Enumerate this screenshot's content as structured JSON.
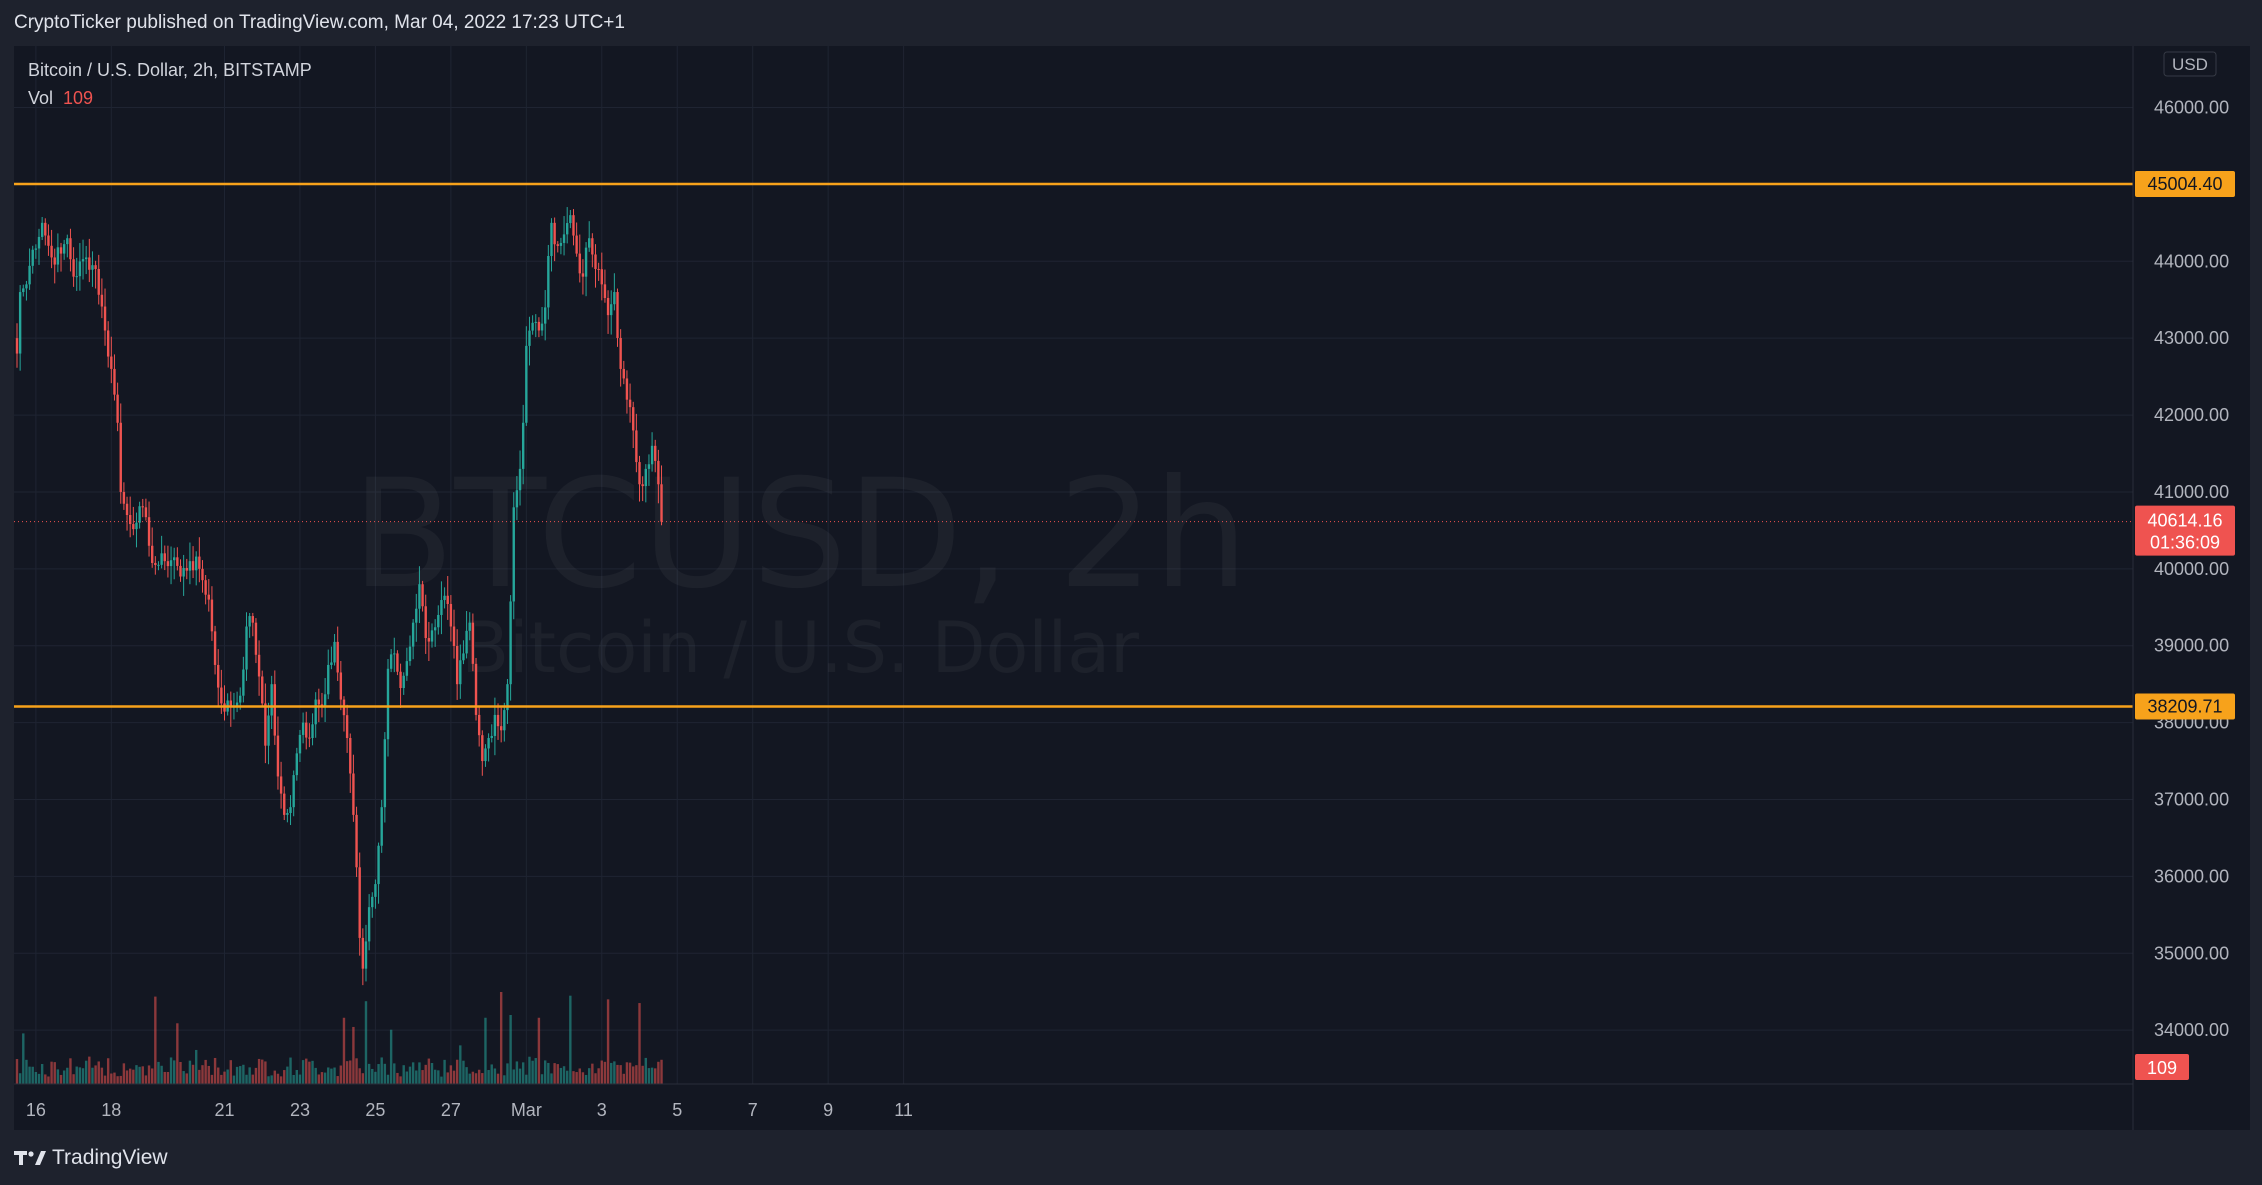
{
  "header": {
    "published_text": "CryptoTicker published on TradingView.com, Mar 04, 2022 17:23 UTC+1"
  },
  "legend": {
    "symbol_line": "Bitcoin / U.S. Dollar, 2h, BITSTAMP",
    "vol_label": "Vol",
    "vol_value": "109"
  },
  "watermark": {
    "ticker": "BTCUSD, 2h",
    "name": "Bitcoin / U.S. Dollar"
  },
  "footer": {
    "brand": "TradingView"
  },
  "colors": {
    "background": "#131722",
    "up": "#26a69a",
    "down": "#ef5350",
    "level_line": "#f7a21b",
    "text": "#b2b5be",
    "grid": "#1f2432"
  },
  "chart_data": {
    "type": "candlestick",
    "symbol": "Bitcoin / U.S. Dollar",
    "interval": "2h",
    "exchange": "BITSTAMP",
    "currency_label": "USD",
    "ylim": [
      33300,
      46800
    ],
    "y_ticks": [
      "46000.00",
      "45000.00",
      "44000.00",
      "43000.00",
      "42000.00",
      "41000.00",
      "40000.00",
      "39000.00",
      "38000.00",
      "37000.00",
      "36000.00",
      "35000.00",
      "34000.00"
    ],
    "x_ticks": [
      {
        "label": "16",
        "bar": 6
      },
      {
        "label": "18",
        "bar": 30
      },
      {
        "label": "21",
        "bar": 66
      },
      {
        "label": "23",
        "bar": 90
      },
      {
        "label": "25",
        "bar": 114
      },
      {
        "label": "27",
        "bar": 138
      },
      {
        "label": "Mar",
        "bar": 162
      },
      {
        "label": "3",
        "bar": 186
      },
      {
        "label": "5",
        "bar": 210
      },
      {
        "label": "7",
        "bar": 234
      },
      {
        "label": "9",
        "bar": 258
      },
      {
        "label": "11",
        "bar": 282
      }
    ],
    "horizontal_levels": [
      {
        "label": "45004.40",
        "value": 45004.4
      },
      {
        "label": "38209.71",
        "value": 38209.71
      }
    ],
    "last_price": {
      "label": "40614.16",
      "value": 40614.16,
      "countdown": "01:36:09"
    },
    "last_volume": "109",
    "close_keypoints": [
      [
        0,
        42800
      ],
      [
        1,
        43600
      ],
      [
        3,
        43700
      ],
      [
        5,
        44150
      ],
      [
        8,
        44500
      ],
      [
        11,
        44050
      ],
      [
        14,
        44100
      ],
      [
        16,
        44300
      ],
      [
        18,
        43800
      ],
      [
        22,
        44050
      ],
      [
        25,
        43900
      ],
      [
        28,
        43100
      ],
      [
        30,
        42600
      ],
      [
        32,
        41900
      ],
      [
        33,
        41000
      ],
      [
        35,
        40700
      ],
      [
        38,
        40600
      ],
      [
        40,
        40800
      ],
      [
        42,
        40300
      ],
      [
        44,
        40050
      ],
      [
        47,
        40100
      ],
      [
        50,
        40150
      ],
      [
        52,
        39900
      ],
      [
        55,
        40100
      ],
      [
        58,
        40000
      ],
      [
        61,
        39600
      ],
      [
        63,
        38750
      ],
      [
        65,
        38250
      ],
      [
        68,
        38200
      ],
      [
        71,
        38350
      ],
      [
        73,
        39250
      ],
      [
        75,
        39300
      ],
      [
        77,
        38600
      ],
      [
        79,
        37700
      ],
      [
        81,
        38500
      ],
      [
        83,
        37300
      ],
      [
        85,
        36800
      ],
      [
        87,
        36900
      ],
      [
        89,
        37600
      ],
      [
        91,
        38000
      ],
      [
        93,
        37800
      ],
      [
        95,
        38300
      ],
      [
        97,
        38200
      ],
      [
        99,
        38750
      ],
      [
        101,
        39050
      ],
      [
        103,
        38300
      ],
      [
        105,
        37800
      ],
      [
        107,
        36800
      ],
      [
        109,
        35200
      ],
      [
        110,
        34800
      ],
      [
        112,
        35600
      ],
      [
        114,
        35900
      ],
      [
        116,
        36900
      ],
      [
        118,
        38700
      ],
      [
        120,
        38900
      ],
      [
        122,
        38450
      ],
      [
        124,
        38800
      ],
      [
        126,
        39300
      ],
      [
        128,
        39800
      ],
      [
        130,
        39100
      ],
      [
        132,
        39200
      ],
      [
        134,
        39400
      ],
      [
        136,
        39650
      ],
      [
        138,
        39250
      ],
      [
        140,
        38500
      ],
      [
        142,
        38900
      ],
      [
        144,
        39300
      ],
      [
        146,
        38100
      ],
      [
        148,
        37500
      ],
      [
        150,
        37800
      ],
      [
        152,
        38100
      ],
      [
        154,
        37900
      ],
      [
        156,
        38500
      ],
      [
        158,
        40800
      ],
      [
        160,
        41300
      ],
      [
        161,
        41900
      ],
      [
        162,
        42900
      ],
      [
        164,
        43200
      ],
      [
        166,
        43100
      ],
      [
        168,
        43400
      ],
      [
        170,
        44500
      ],
      [
        172,
        44200
      ],
      [
        174,
        44350
      ],
      [
        176,
        44600
      ],
      [
        178,
        44100
      ],
      [
        180,
        43800
      ],
      [
        182,
        44300
      ],
      [
        184,
        43900
      ],
      [
        186,
        43700
      ],
      [
        188,
        43300
      ],
      [
        190,
        43600
      ],
      [
        192,
        42600
      ],
      [
        194,
        42200
      ],
      [
        196,
        41800
      ],
      [
        198,
        41100
      ],
      [
        200,
        41300
      ],
      [
        202,
        41600
      ],
      [
        204,
        41100
      ],
      [
        205,
        40614
      ]
    ],
    "volume_spikes": [
      {
        "bar": 2,
        "value": 0.55
      },
      {
        "bar": 29,
        "value": 0.28
      },
      {
        "bar": 44,
        "value": 0.95
      },
      {
        "bar": 51,
        "value": 0.66
      },
      {
        "bar": 57,
        "value": 0.37
      },
      {
        "bar": 104,
        "value": 0.72
      },
      {
        "bar": 107,
        "value": 0.62
      },
      {
        "bar": 111,
        "value": 0.9
      },
      {
        "bar": 119,
        "value": 0.59
      },
      {
        "bar": 141,
        "value": 0.42
      },
      {
        "bar": 149,
        "value": 0.72
      },
      {
        "bar": 154,
        "value": 1.0
      },
      {
        "bar": 157,
        "value": 0.75
      },
      {
        "bar": 166,
        "value": 0.72
      },
      {
        "bar": 176,
        "value": 0.96
      },
      {
        "bar": 188,
        "value": 0.92
      },
      {
        "bar": 198,
        "value": 0.88
      }
    ]
  }
}
